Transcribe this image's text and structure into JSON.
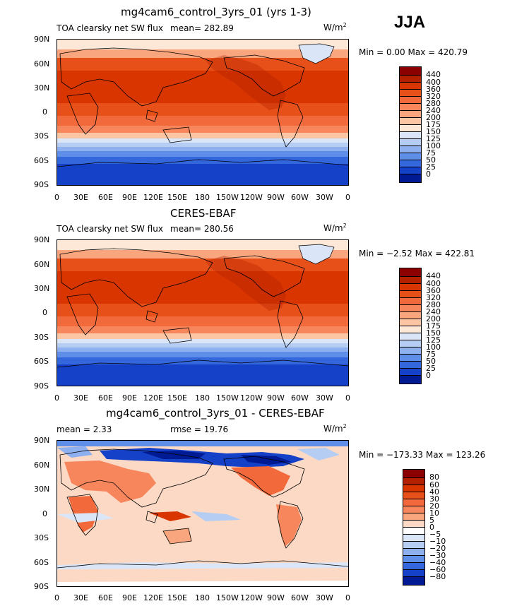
{
  "season": "JJA",
  "panels": [
    {
      "title": "mg4cam6_control_3yrs_01 (yrs 1-3)",
      "left_label": "TOA clearsky net SW flux",
      "mean_label": "mean= 282.89",
      "units": "W/m",
      "units_sup": "2",
      "minmax": "Min =    0.00 Max = 420.79",
      "colorbar_labels": [
        "440",
        "400",
        "360",
        "320",
        "280",
        "240",
        "200",
        "175",
        "150",
        "125",
        "100",
        "75",
        "50",
        "25",
        "0"
      ],
      "colorbar_colors": [
        "#8b0000",
        "#b22000",
        "#d83500",
        "#e8501a",
        "#f26a3c",
        "#f7865c",
        "#f9a57e",
        "#fcc6a5",
        "#fde8d8",
        "#dae6f7",
        "#b5cdf3",
        "#8fb0ef",
        "#5f8ee8",
        "#3466dc",
        "#1540c8",
        "#001a93"
      ]
    },
    {
      "title": "CERES-EBAF",
      "left_label": "TOA clearsky net SW flux",
      "mean_label": "mean= 280.56",
      "units": "W/m",
      "units_sup": "2",
      "minmax": "Min =  −2.52 Max = 422.81",
      "colorbar_labels": [
        "440",
        "400",
        "360",
        "320",
        "280",
        "240",
        "200",
        "175",
        "150",
        "125",
        "100",
        "75",
        "50",
        "25",
        "0"
      ],
      "colorbar_colors": [
        "#8b0000",
        "#b22000",
        "#d83500",
        "#e8501a",
        "#f26a3c",
        "#f7865c",
        "#f9a57e",
        "#fcc6a5",
        "#fde8d8",
        "#dae6f7",
        "#b5cdf3",
        "#8fb0ef",
        "#5f8ee8",
        "#3466dc",
        "#1540c8",
        "#001a93"
      ]
    },
    {
      "title": "mg4cam6_control_3yrs_01 - CERES-EBAF",
      "left_label": "mean =    2.33",
      "mean_label": "rmse =   19.76",
      "units": "W/m",
      "units_sup": "2",
      "minmax": "Min = −173.33 Max = 123.26",
      "colorbar_labels": [
        "80",
        "60",
        "40",
        "30",
        "20",
        "10",
        "5",
        "0",
        "−5",
        "−10",
        "−20",
        "−30",
        "−40",
        "−60",
        "−80"
      ],
      "colorbar_colors": [
        "#8b0000",
        "#b22000",
        "#d83500",
        "#e8501a",
        "#f26a3c",
        "#f7865c",
        "#f9a57e",
        "#fcd9c4",
        "#ffffff",
        "#dae6f7",
        "#b5cdf3",
        "#8fb0ef",
        "#5f8ee8",
        "#3466dc",
        "#1540c8",
        "#001a93"
      ]
    }
  ],
  "axes": {
    "lat_labels": [
      "90N",
      "60N",
      "30N",
      "0",
      "30S",
      "60S",
      "90S"
    ],
    "lon_labels": [
      "0",
      "30E",
      "60E",
      "90E",
      "120E",
      "150E",
      "180",
      "150W",
      "120W",
      "90W",
      "60W",
      "30W",
      "0"
    ]
  }
}
